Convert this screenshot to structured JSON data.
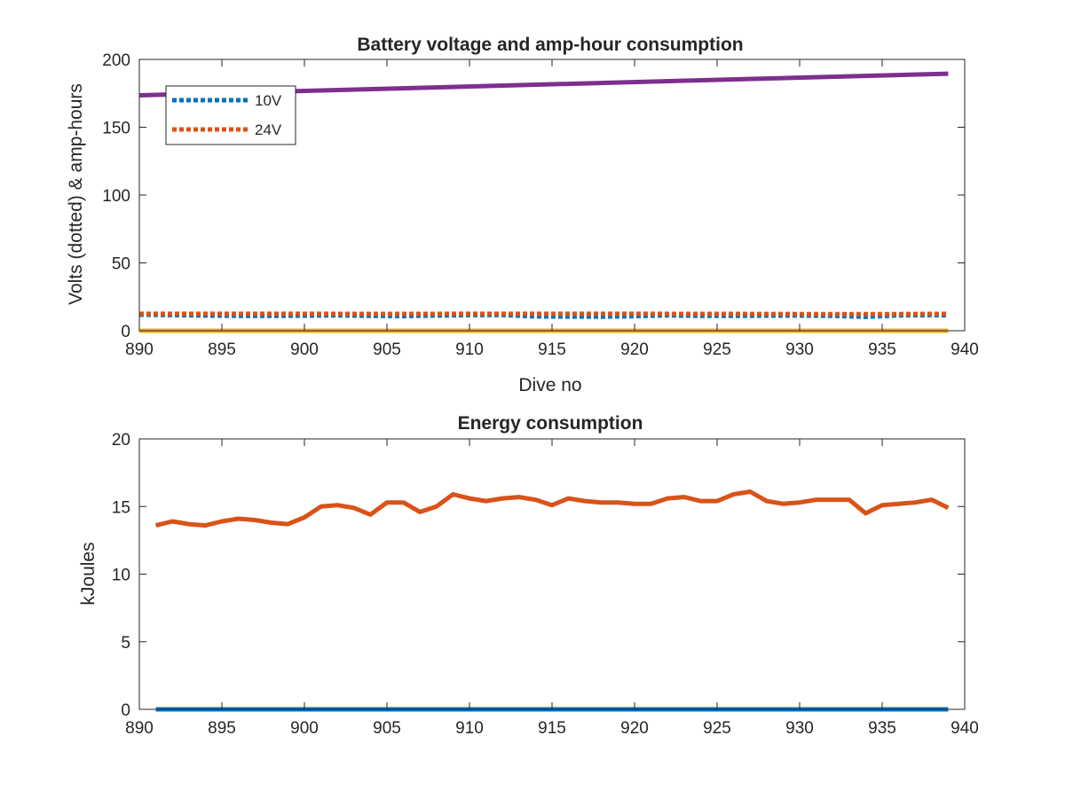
{
  "chart_data": [
    {
      "type": "line",
      "title": "Battery voltage and amp-hour consumption",
      "xlabel": "Dive no",
      "ylabel": "Volts (dotted) & amp-hours",
      "xlim": [
        890,
        940
      ],
      "ylim": [
        0,
        200
      ],
      "xticks": [
        "890",
        "895",
        "900",
        "905",
        "910",
        "915",
        "920",
        "925",
        "930",
        "935",
        "940"
      ],
      "yticks": [
        "0",
        "50",
        "100",
        "150",
        "200"
      ],
      "legend_position": "top-left",
      "grid": false,
      "series": [
        {
          "name": "10V",
          "style": "dotted",
          "color": "#0072BD",
          "x": [
            890,
            892,
            894,
            896,
            898,
            900,
            902,
            904,
            906,
            908,
            910,
            912,
            914,
            916,
            918,
            920,
            922,
            924,
            926,
            928,
            930,
            932,
            934,
            936,
            938,
            939
          ],
          "values": [
            11.8,
            11.5,
            11.2,
            11.0,
            10.9,
            11.1,
            11.3,
            11.0,
            10.8,
            11.2,
            11.5,
            11.6,
            10.5,
            10.4,
            10.3,
            10.7,
            11.3,
            11.0,
            10.9,
            11.1,
            11.2,
            11.0,
            10.2,
            11.3,
            11.5,
            11.3
          ]
        },
        {
          "name": "24V",
          "style": "dotted",
          "color": "#D95319",
          "x": [
            890,
            895,
            900,
            905,
            910,
            915,
            920,
            925,
            930,
            935,
            939
          ],
          "values": [
            12.5,
            12.5,
            12.5,
            12.4,
            12.5,
            12.5,
            12.5,
            12.4,
            12.3,
            12.2,
            12.5
          ]
        },
        {
          "style": "solid",
          "color": "#7E2F8E",
          "x": [
            890,
            939
          ],
          "values": [
            173.5,
            189.5
          ]
        },
        {
          "style": "solid",
          "color": "#EDB120",
          "x": [
            890,
            939
          ],
          "values": [
            0,
            0
          ]
        }
      ]
    },
    {
      "type": "line",
      "title": "Energy consumption",
      "xlabel": "",
      "ylabel": "kJoules",
      "xlim": [
        890,
        940
      ],
      "ylim": [
        0,
        20
      ],
      "xticks": [
        "890",
        "895",
        "900",
        "905",
        "910",
        "915",
        "920",
        "925",
        "930",
        "935",
        "940"
      ],
      "yticks": [
        "0",
        "5",
        "10",
        "15",
        "20"
      ],
      "grid": false,
      "series": [
        {
          "style": "solid",
          "color": "#D95319",
          "x": [
            891,
            892,
            893,
            894,
            895,
            896,
            897,
            898,
            899,
            900,
            901,
            902,
            903,
            904,
            905,
            906,
            907,
            908,
            909,
            910,
            911,
            912,
            913,
            914,
            915,
            916,
            917,
            918,
            919,
            920,
            921,
            922,
            923,
            924,
            925,
            926,
            927,
            928,
            929,
            930,
            931,
            932,
            933,
            934,
            935,
            936,
            937,
            938,
            939
          ],
          "values": [
            13.6,
            13.9,
            13.7,
            13.6,
            13.9,
            14.1,
            14.0,
            13.8,
            13.7,
            14.2,
            15.0,
            15.1,
            14.9,
            14.4,
            15.3,
            15.3,
            14.6,
            15.0,
            15.9,
            15.6,
            15.4,
            15.6,
            15.7,
            15.5,
            15.1,
            15.6,
            15.4,
            15.3,
            15.3,
            15.2,
            15.2,
            15.6,
            15.7,
            15.4,
            15.4,
            15.9,
            16.1,
            15.4,
            15.2,
            15.3,
            15.5,
            15.5,
            15.5,
            14.5,
            15.1,
            15.2,
            15.3,
            15.5,
            14.9
          ]
        },
        {
          "style": "solid",
          "color": "#0072BD",
          "x": [
            891,
            939
          ],
          "values": [
            0,
            0
          ]
        }
      ]
    }
  ]
}
